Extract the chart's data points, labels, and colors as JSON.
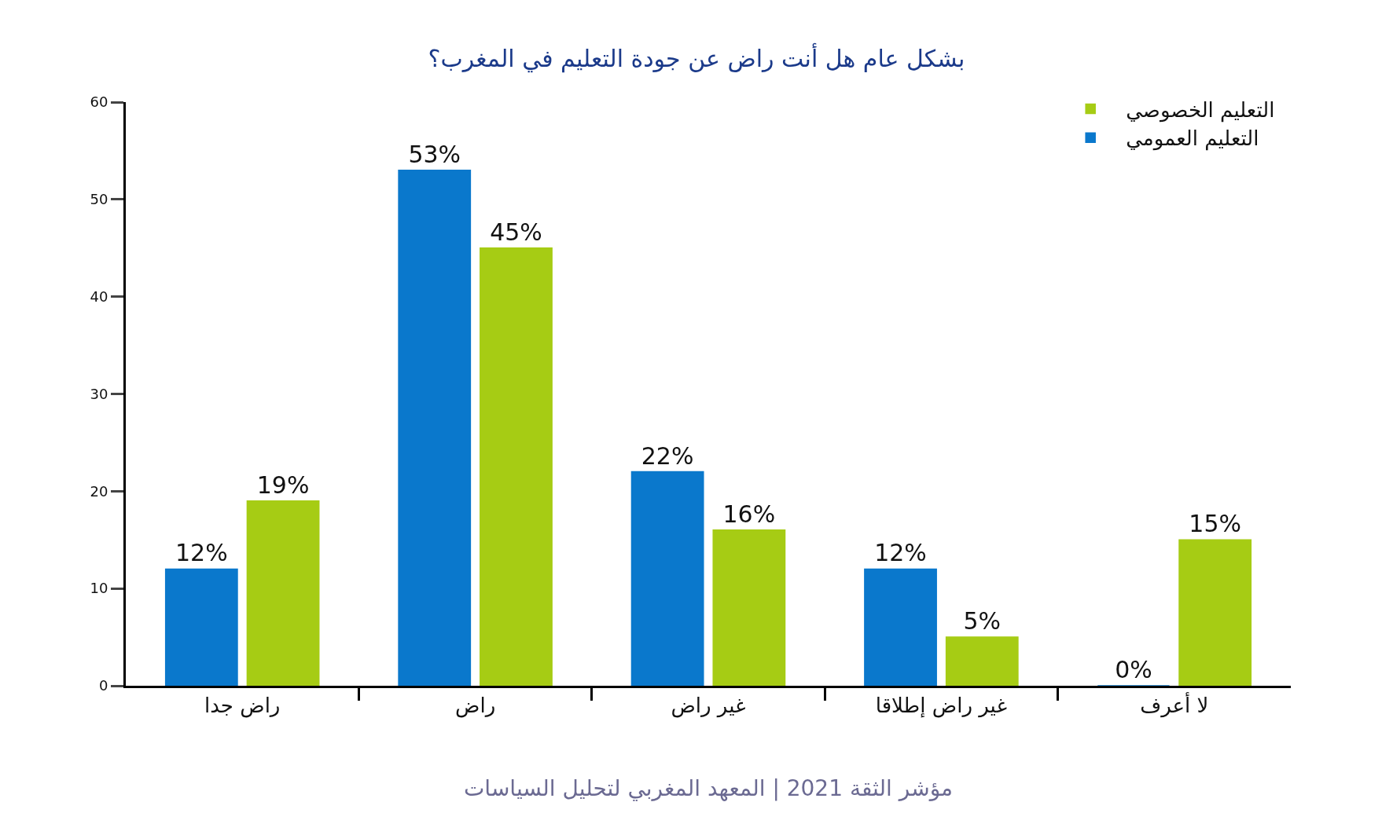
{
  "chart_data": {
    "type": "bar",
    "title": "بشكل عام هل أنت راض عن جودة التعليم في المغرب؟",
    "categories": [
      "راض جدا",
      "راض",
      "غير راض",
      "غير راض إطلاقا",
      "لا أعرف"
    ],
    "series": [
      {
        "name": "التعليم العمومي",
        "color": "#0a78cc",
        "values": [
          12,
          53,
          22,
          12,
          0
        ],
        "value_labels": [
          "12%",
          "53%",
          "22%",
          "12%",
          "0%"
        ]
      },
      {
        "name": "التعليم الخصوصي",
        "color": "#a6cc14",
        "values": [
          19,
          45,
          16,
          5,
          15
        ],
        "value_labels": [
          "19%",
          "45%",
          "16%",
          "5%",
          "15%"
        ]
      }
    ],
    "ylim": [
      0,
      60
    ],
    "yticks": [
      0,
      10,
      20,
      30,
      40,
      50,
      60
    ],
    "grid": false,
    "legend": "top right",
    "annotations": [
      "مؤشر الثقة 2021 | المعهد المغربي لتحليل السياسات"
    ]
  }
}
